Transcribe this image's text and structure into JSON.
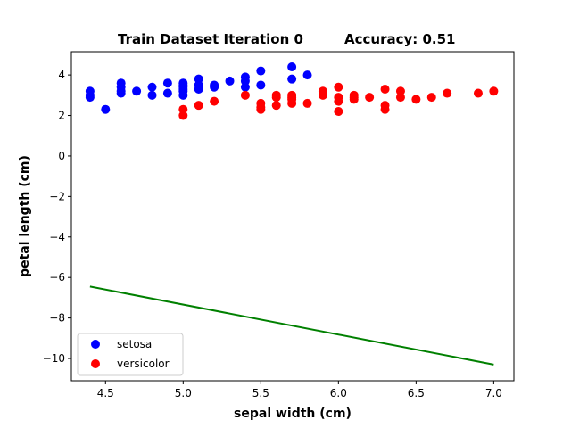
{
  "chart_data": {
    "type": "scatter",
    "title_left": "Train Dataset Iteration 0",
    "title_right": "Accuracy: 0.51",
    "xlabel": "sepal width (cm)",
    "ylabel": "petal length (cm)",
    "xlim": [
      4.28,
      7.13
    ],
    "ylim": [
      -11.1,
      5.15
    ],
    "xticks": [
      "4.5",
      "5.0",
      "5.5",
      "6.0",
      "6.5",
      "7.0"
    ],
    "xtick_values": [
      4.5,
      5.0,
      5.5,
      6.0,
      6.5,
      7.0
    ],
    "yticks": [
      "4",
      "2",
      "0",
      "−2",
      "−4",
      "−6",
      "−8",
      "−10"
    ],
    "ytick_values": [
      4,
      2,
      0,
      -2,
      -4,
      -6,
      -8,
      -10
    ],
    "grid": false,
    "legend_position": "lower-left",
    "series": [
      {
        "name": "setosa",
        "color": "#0000ff",
        "marker": "circle",
        "points": [
          [
            4.4,
            2.9
          ],
          [
            4.4,
            3.0
          ],
          [
            4.4,
            3.2
          ],
          [
            4.5,
            2.3
          ],
          [
            4.6,
            3.1
          ],
          [
            4.6,
            3.2
          ],
          [
            4.6,
            3.4
          ],
          [
            4.6,
            3.6
          ],
          [
            4.7,
            3.2
          ],
          [
            4.8,
            3.0
          ],
          [
            4.8,
            3.4
          ],
          [
            4.9,
            3.1
          ],
          [
            4.9,
            3.6
          ],
          [
            5.0,
            3.0
          ],
          [
            5.0,
            3.2
          ],
          [
            5.0,
            3.3
          ],
          [
            5.0,
            3.4
          ],
          [
            5.0,
            3.5
          ],
          [
            5.0,
            3.6
          ],
          [
            5.1,
            3.3
          ],
          [
            5.1,
            3.5
          ],
          [
            5.1,
            3.8
          ],
          [
            5.2,
            3.4
          ],
          [
            5.2,
            3.5
          ],
          [
            5.3,
            3.7
          ],
          [
            5.4,
            3.4
          ],
          [
            5.4,
            3.7
          ],
          [
            5.4,
            3.9
          ],
          [
            5.5,
            3.5
          ],
          [
            5.5,
            4.2
          ],
          [
            5.7,
            3.8
          ],
          [
            5.7,
            4.4
          ],
          [
            5.8,
            4.0
          ]
        ]
      },
      {
        "name": "versicolor",
        "color": "#ff0000",
        "marker": "circle",
        "points": [
          [
            5.0,
            2.0
          ],
          [
            5.0,
            2.3
          ],
          [
            5.1,
            2.5
          ],
          [
            5.2,
            2.7
          ],
          [
            5.4,
            3.0
          ],
          [
            5.5,
            2.3
          ],
          [
            5.5,
            2.4
          ],
          [
            5.5,
            2.6
          ],
          [
            5.6,
            2.5
          ],
          [
            5.6,
            2.9
          ],
          [
            5.6,
            3.0
          ],
          [
            5.7,
            2.6
          ],
          [
            5.7,
            2.8
          ],
          [
            5.7,
            2.9
          ],
          [
            5.7,
            3.0
          ],
          [
            5.8,
            2.6
          ],
          [
            5.9,
            3.0
          ],
          [
            5.9,
            3.2
          ],
          [
            6.0,
            2.2
          ],
          [
            6.0,
            2.7
          ],
          [
            6.0,
            2.9
          ],
          [
            6.0,
            3.4
          ],
          [
            6.1,
            2.8
          ],
          [
            6.1,
            2.9
          ],
          [
            6.1,
            3.0
          ],
          [
            6.2,
            2.9
          ],
          [
            6.3,
            2.3
          ],
          [
            6.3,
            2.5
          ],
          [
            6.3,
            3.3
          ],
          [
            6.4,
            2.9
          ],
          [
            6.4,
            3.2
          ],
          [
            6.5,
            2.8
          ],
          [
            6.6,
            2.9
          ],
          [
            6.7,
            3.1
          ],
          [
            6.9,
            3.1
          ],
          [
            7.0,
            3.2
          ]
        ]
      }
    ],
    "lines": [
      {
        "color": "#008000",
        "x": [
          4.4,
          7.0
        ],
        "y": [
          -6.45,
          -10.3
        ]
      }
    ]
  }
}
